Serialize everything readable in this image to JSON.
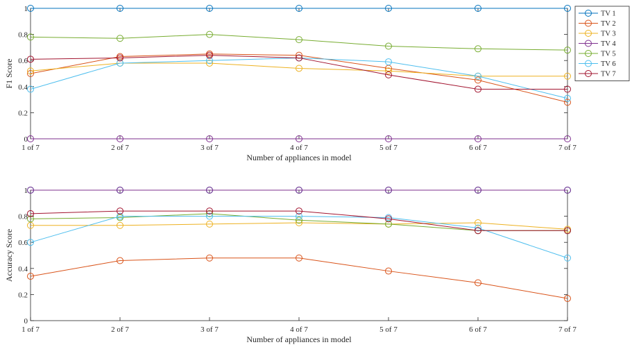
{
  "chart_data": [
    {
      "type": "line",
      "title": "",
      "xlabel": "Number of appliances in model",
      "ylabel": "F1 Score",
      "categories": [
        "1 of 7",
        "2 of 7",
        "3 of 7",
        "4 of 7",
        "5 of 7",
        "6 of 7",
        "7 of 7"
      ],
      "ylim": [
        0,
        1
      ],
      "yticks": [
        "0",
        "0.2",
        "0.4",
        "0.6",
        "0.8",
        "1"
      ],
      "grid": false,
      "legend": "outside-top-right",
      "series": [
        {
          "name": "TV 1",
          "color": "#0072BD",
          "values": [
            1.0,
            1.0,
            1.0,
            1.0,
            1.0,
            1.0,
            1.0
          ]
        },
        {
          "name": "TV 2",
          "color": "#D95319",
          "values": [
            0.5,
            0.63,
            0.65,
            0.64,
            0.54,
            0.45,
            0.28
          ]
        },
        {
          "name": "TV 3",
          "color": "#EDB120",
          "values": [
            0.52,
            0.58,
            0.58,
            0.54,
            0.52,
            0.48,
            0.48
          ]
        },
        {
          "name": "TV 4",
          "color": "#7E2F8E",
          "values": [
            0.0,
            0.0,
            0.0,
            0.0,
            0.0,
            0.0,
            0.0
          ]
        },
        {
          "name": "TV 5",
          "color": "#77AC30",
          "values": [
            0.78,
            0.77,
            0.8,
            0.76,
            0.71,
            0.69,
            0.68
          ]
        },
        {
          "name": "TV 6",
          "color": "#4DBEEE",
          "values": [
            0.38,
            0.58,
            0.6,
            0.62,
            0.59,
            0.48,
            0.31
          ]
        },
        {
          "name": "TV 7",
          "color": "#A2142F",
          "values": [
            0.61,
            0.62,
            0.64,
            0.62,
            0.49,
            0.38,
            0.38
          ]
        }
      ]
    },
    {
      "type": "line",
      "title": "",
      "xlabel": "Number of appliances in model",
      "ylabel": "Accuracy Score",
      "categories": [
        "1 of 7",
        "2 of 7",
        "3 of 7",
        "4 of 7",
        "5 of 7",
        "6 of 7",
        "7 of 7"
      ],
      "ylim": [
        0,
        1
      ],
      "yticks": [
        "0",
        "0.2",
        "0.4",
        "0.6",
        "0.8",
        "1"
      ],
      "grid": false,
      "legend": "none",
      "series": [
        {
          "name": "TV 1",
          "color": "#0072BD",
          "values": [
            1.0,
            1.0,
            1.0,
            1.0,
            1.0,
            1.0,
            1.0
          ]
        },
        {
          "name": "TV 2",
          "color": "#D95319",
          "values": [
            0.34,
            0.46,
            0.48,
            0.48,
            0.38,
            0.29,
            0.17
          ]
        },
        {
          "name": "TV 3",
          "color": "#EDB120",
          "values": [
            0.73,
            0.73,
            0.74,
            0.75,
            0.74,
            0.75,
            0.7
          ]
        },
        {
          "name": "TV 4",
          "color": "#7E2F8E",
          "values": [
            1.0,
            1.0,
            1.0,
            1.0,
            1.0,
            1.0,
            1.0
          ]
        },
        {
          "name": "TV 5",
          "color": "#77AC30",
          "values": [
            0.78,
            0.79,
            0.82,
            0.77,
            0.74,
            0.69,
            0.69
          ]
        },
        {
          "name": "TV 6",
          "color": "#4DBEEE",
          "values": [
            0.6,
            0.8,
            0.8,
            0.8,
            0.79,
            0.71,
            0.48
          ]
        },
        {
          "name": "TV 7",
          "color": "#A2142F",
          "values": [
            0.82,
            0.84,
            0.84,
            0.84,
            0.78,
            0.69,
            0.69
          ]
        }
      ]
    }
  ]
}
